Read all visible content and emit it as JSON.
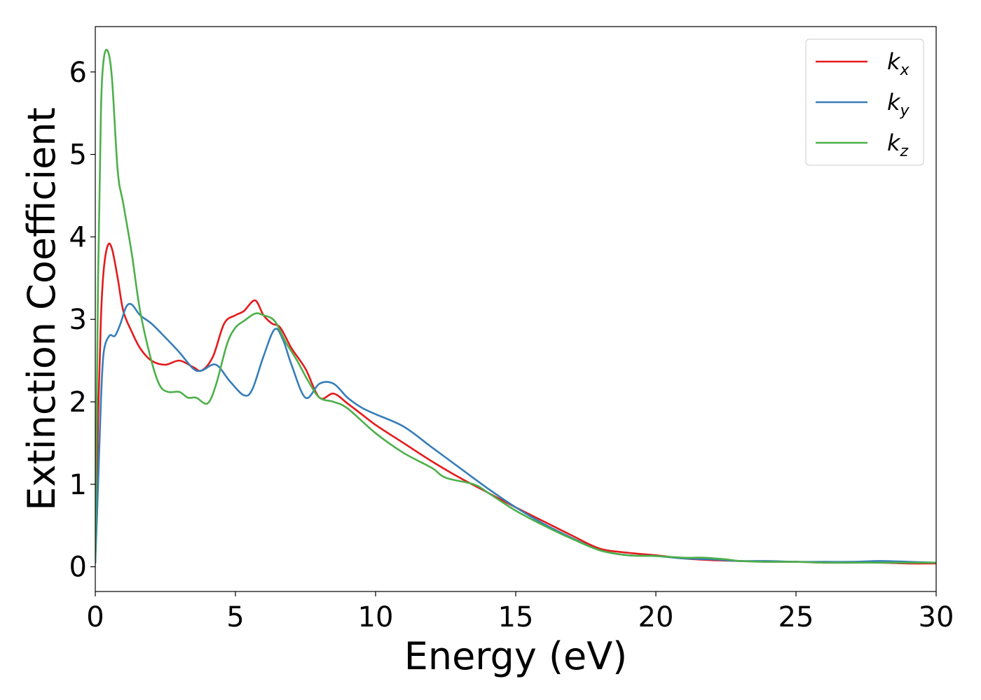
{
  "chart_data": {
    "type": "line",
    "title": "",
    "xlabel": "Energy (eV)",
    "ylabel": "Extinction Coefficient",
    "xlim": [
      0,
      30
    ],
    "ylim": [
      -0.3,
      6.55
    ],
    "xticks": [
      0,
      5,
      10,
      15,
      20,
      25,
      30
    ],
    "xtick_labels": [
      "0",
      "5",
      "10",
      "15",
      "20",
      "25",
      "30"
    ],
    "yticks": [
      0,
      1,
      2,
      3,
      4,
      5,
      6
    ],
    "ytick_labels": [
      "0",
      "1",
      "2",
      "3",
      "4",
      "5",
      "6"
    ],
    "grid": false,
    "legend_position": "top-right",
    "series": [
      {
        "name": "k_x",
        "label_base": "k",
        "label_sub": "x",
        "color": "#e41a1c",
        "x": [
          0,
          0.1,
          0.2,
          0.3,
          0.45,
          0.6,
          0.8,
          1.0,
          1.3,
          1.6,
          2.0,
          2.5,
          3.0,
          3.5,
          3.8,
          4.2,
          4.6,
          5.0,
          5.3,
          5.7,
          6.0,
          6.3,
          6.6,
          7.0,
          7.5,
          8.0,
          8.5,
          9.0,
          9.5,
          10.0,
          11.0,
          12.0,
          13.0,
          14.0,
          15.0,
          16.0,
          17.0,
          18.0,
          19.0,
          20.0,
          21.0,
          22.0,
          23.0,
          24.0,
          25.0,
          26.0,
          27.0,
          28.0,
          29.0,
          30.0
        ],
        "y": [
          0.05,
          1.8,
          3.0,
          3.6,
          3.9,
          3.85,
          3.5,
          3.1,
          2.85,
          2.65,
          2.5,
          2.45,
          2.5,
          2.42,
          2.38,
          2.55,
          2.95,
          3.05,
          3.1,
          3.23,
          3.05,
          2.95,
          2.9,
          2.65,
          2.4,
          2.05,
          2.1,
          1.98,
          1.85,
          1.72,
          1.5,
          1.28,
          1.08,
          0.9,
          0.72,
          0.55,
          0.38,
          0.22,
          0.17,
          0.14,
          0.1,
          0.08,
          0.07,
          0.06,
          0.06,
          0.05,
          0.05,
          0.05,
          0.04,
          0.04
        ]
      },
      {
        "name": "k_y",
        "label_base": "k",
        "label_sub": "y",
        "color": "#377eb8",
        "x": [
          0,
          0.1,
          0.2,
          0.3,
          0.5,
          0.7,
          0.9,
          1.1,
          1.3,
          1.6,
          2.0,
          2.5,
          3.0,
          3.5,
          3.8,
          4.3,
          4.8,
          5.3,
          5.6,
          6.0,
          6.4,
          6.7,
          7.0,
          7.5,
          8.0,
          8.5,
          9.0,
          9.5,
          10.0,
          11.0,
          12.0,
          13.0,
          14.0,
          15.0,
          16.0,
          17.0,
          18.0,
          19.0,
          20.0,
          21.0,
          22.0,
          23.0,
          24.0,
          25.0,
          26.0,
          27.0,
          28.0,
          29.0,
          30.0
        ],
        "y": [
          0.05,
          1.0,
          2.0,
          2.6,
          2.8,
          2.8,
          2.95,
          3.15,
          3.18,
          3.05,
          2.95,
          2.78,
          2.6,
          2.4,
          2.38,
          2.45,
          2.25,
          2.08,
          2.15,
          2.55,
          2.88,
          2.75,
          2.45,
          2.05,
          2.22,
          2.22,
          2.05,
          1.93,
          1.85,
          1.7,
          1.45,
          1.2,
          0.95,
          0.72,
          0.52,
          0.35,
          0.2,
          0.14,
          0.13,
          0.1,
          0.09,
          0.07,
          0.07,
          0.06,
          0.06,
          0.06,
          0.07,
          0.06,
          0.05
        ]
      },
      {
        "name": "k_z",
        "label_base": "k",
        "label_sub": "z",
        "color": "#4daf4a",
        "x": [
          0,
          0.1,
          0.2,
          0.3,
          0.45,
          0.6,
          0.8,
          1.0,
          1.3,
          1.6,
          2.0,
          2.3,
          2.6,
          3.0,
          3.3,
          3.6,
          4.0,
          4.3,
          4.7,
          5.0,
          5.3,
          5.7,
          6.0,
          6.4,
          6.8,
          7.2,
          7.6,
          8.0,
          8.5,
          9.0,
          10.0,
          11.0,
          12.0,
          12.5,
          13.5,
          14.0,
          15.0,
          16.0,
          17.0,
          18.0,
          19.0,
          20.0,
          21.0,
          21.7,
          22.5,
          23.0,
          24.0,
          25.0,
          26.0,
          27.0,
          28.0,
          29.0,
          30.0
        ],
        "y": [
          0.05,
          3.5,
          5.5,
          6.15,
          6.25,
          5.9,
          4.8,
          4.4,
          3.8,
          3.1,
          2.5,
          2.2,
          2.12,
          2.12,
          2.05,
          2.05,
          1.98,
          2.2,
          2.7,
          2.9,
          2.98,
          3.07,
          3.05,
          2.98,
          2.72,
          2.5,
          2.25,
          2.05,
          2.0,
          1.92,
          1.62,
          1.38,
          1.2,
          1.08,
          1.0,
          0.9,
          0.68,
          0.5,
          0.34,
          0.2,
          0.14,
          0.13,
          0.11,
          0.11,
          0.09,
          0.07,
          0.06,
          0.06,
          0.05,
          0.05,
          0.05,
          0.05,
          0.05
        ]
      }
    ]
  }
}
